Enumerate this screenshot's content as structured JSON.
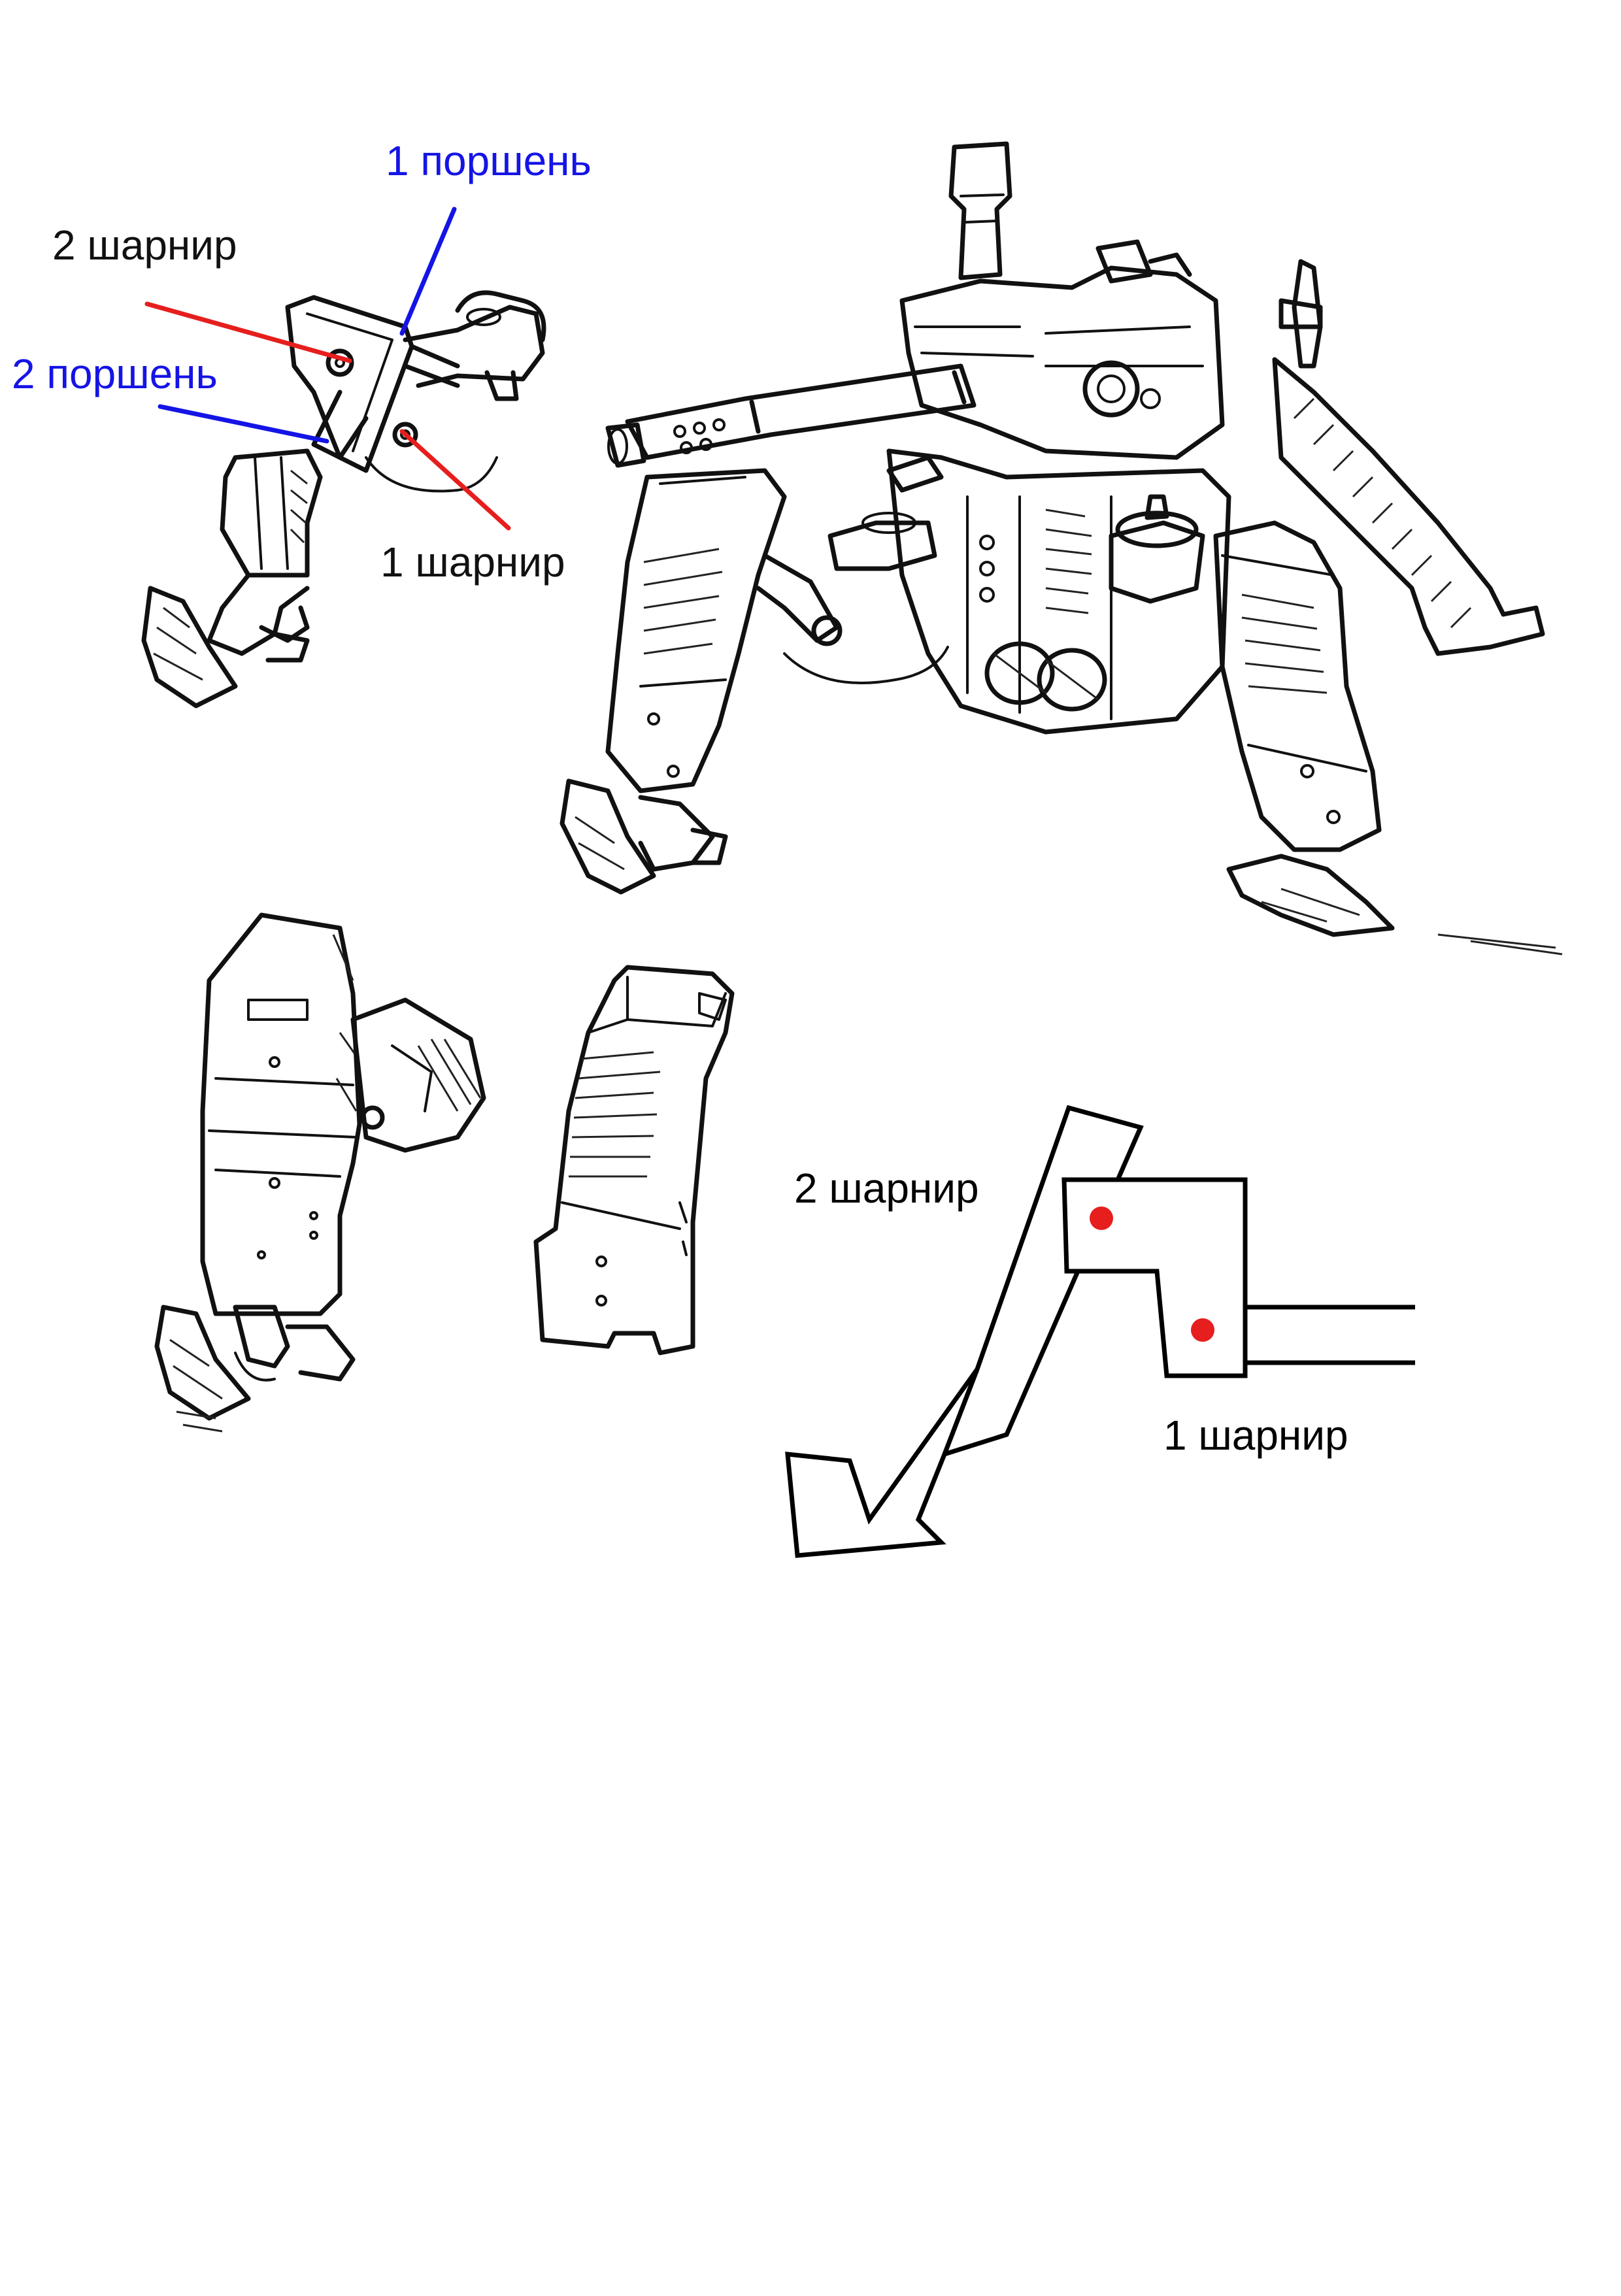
{
  "colors": {
    "piston": "#1414e6",
    "joint": "#e61e1e",
    "ink": "#111111",
    "background": "#ffffff"
  },
  "annotations": {
    "piston_1": "1 поршень",
    "joint_2": "2 шарнир",
    "piston_2": "2 поршень",
    "joint_1": "1 шарнир"
  },
  "schematic": {
    "joint_2": "2 шарнир",
    "joint_1": "1 шарнир"
  }
}
